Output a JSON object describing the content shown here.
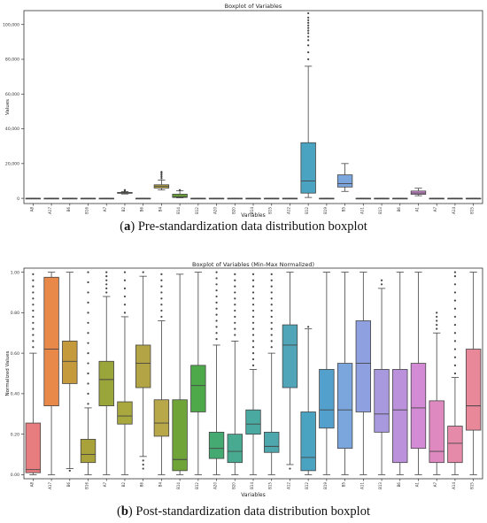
{
  "chart_data": [
    {
      "type": "boxplot",
      "title": "Boxplot of Variables",
      "xlabel": "Variables",
      "ylabel": "Values",
      "ylim": [
        -3000,
        108000
      ],
      "yticks": [
        0,
        20000,
        40000,
        60000,
        80000,
        100000
      ],
      "ytick_labels": [
        "0",
        "20,000",
        "40,000",
        "60,000",
        "80,000",
        "100,000"
      ],
      "grid": false,
      "categories": [
        "A8",
        "A17",
        "B6",
        "B16",
        "A7",
        "B2",
        "B6",
        "B4",
        "B14",
        "B12",
        "A20",
        "B20",
        "B14",
        "B15",
        "A12",
        "B12",
        "B19",
        "B5",
        "A11",
        "B13",
        "B6",
        "A1",
        "A7",
        "A14",
        "B15"
      ],
      "boxes": [
        {
          "min": -50,
          "q1": -30,
          "median": 0,
          "q3": 30,
          "max": 80,
          "color": "#e87d80",
          "fliers": []
        },
        {
          "min": -50,
          "q1": -30,
          "median": 0,
          "q3": 30,
          "max": 80,
          "color": "#e8894a",
          "fliers": []
        },
        {
          "min": -50,
          "q1": -30,
          "median": 0,
          "q3": 30,
          "max": 80,
          "color": "#c49a3c",
          "fliers": []
        },
        {
          "min": -50,
          "q1": -30,
          "median": 0,
          "q3": 30,
          "max": 80,
          "color": "#a9a23a",
          "fliers": []
        },
        {
          "min": -50,
          "q1": -30,
          "median": 0,
          "q3": 30,
          "max": 80,
          "color": "#9aa53a",
          "fliers": []
        },
        {
          "min": 2500,
          "q1": 2900,
          "median": 3100,
          "q3": 3400,
          "max": 3900,
          "color": "#a8a83e",
          "fliers": [
            4200,
            4500,
            4800
          ]
        },
        {
          "min": -50,
          "q1": -30,
          "median": 0,
          "q3": 30,
          "max": 80,
          "color": "#b3a546",
          "fliers": []
        },
        {
          "min": 4800,
          "q1": 5900,
          "median": 6900,
          "q3": 7800,
          "max": 10500,
          "color": "#b8a84a",
          "fliers": [
            11500,
            12500,
            13500,
            14500,
            15200
          ]
        },
        {
          "min": 300,
          "q1": 500,
          "median": 1000,
          "q3": 2400,
          "max": 4300,
          "color": "#6fa538",
          "fliers": [
            4800
          ]
        },
        {
          "min": -50,
          "q1": -30,
          "median": 0,
          "q3": 30,
          "max": 80,
          "color": "#4ea94a",
          "fliers": []
        },
        {
          "min": -50,
          "q1": -30,
          "median": 0,
          "q3": 30,
          "max": 80,
          "color": "#45a972",
          "fliers": []
        },
        {
          "min": -50,
          "q1": -30,
          "median": 0,
          "q3": 30,
          "max": 80,
          "color": "#48aa90",
          "fliers": []
        },
        {
          "min": -50,
          "q1": -30,
          "median": 0,
          "q3": 30,
          "max": 80,
          "color": "#4aa9a0",
          "fliers": []
        },
        {
          "min": -50,
          "q1": -30,
          "median": 0,
          "q3": 30,
          "max": 80,
          "color": "#4ea7ad",
          "fliers": []
        },
        {
          "min": -50,
          "q1": -30,
          "median": 0,
          "q3": 30,
          "max": 80,
          "color": "#51a5b8",
          "fliers": []
        },
        {
          "min": 500,
          "q1": 3000,
          "median": 10000,
          "q3": 32000,
          "max": 76000,
          "color": "#4aa3c0",
          "fliers": [
            80000,
            84000,
            88000,
            91000,
            93000,
            95000,
            96500,
            98000,
            99500,
            101000,
            102500,
            104000,
            106500
          ]
        },
        {
          "min": -50,
          "q1": -30,
          "median": 0,
          "q3": 30,
          "max": 80,
          "color": "#54a0cc",
          "fliers": []
        },
        {
          "min": 4000,
          "q1": 6500,
          "median": 8500,
          "q3": 13500,
          "max": 20000,
          "color": "#7ba6dd",
          "fliers": []
        },
        {
          "min": -50,
          "q1": -30,
          "median": 0,
          "q3": 30,
          "max": 80,
          "color": "#8ea0e0",
          "fliers": []
        },
        {
          "min": -50,
          "q1": -30,
          "median": 0,
          "q3": 30,
          "max": 80,
          "color": "#a899de",
          "fliers": []
        },
        {
          "min": -50,
          "q1": -30,
          "median": 0,
          "q3": 30,
          "max": 80,
          "color": "#bb91dc",
          "fliers": []
        },
        {
          "min": 1500,
          "q1": 2300,
          "median": 3100,
          "q3": 4200,
          "max": 5800,
          "color": "#d38bd6",
          "fliers": []
        },
        {
          "min": -50,
          "q1": -30,
          "median": 0,
          "q3": 30,
          "max": 80,
          "color": "#de8ac0",
          "fliers": []
        },
        {
          "min": -50,
          "q1": -30,
          "median": 0,
          "q3": 30,
          "max": 80,
          "color": "#e58aa8",
          "fliers": []
        },
        {
          "min": -50,
          "q1": -30,
          "median": 0,
          "q3": 30,
          "max": 80,
          "color": "#e88898",
          "fliers": []
        }
      ]
    },
    {
      "type": "boxplot",
      "title": "Boxplot of Variables (Min-Max Normalized)",
      "xlabel": "Variables",
      "ylabel": "Normalized Values",
      "ylim": [
        -0.02,
        1.02
      ],
      "yticks": [
        0,
        0.2,
        0.4,
        0.6,
        0.8,
        1.0
      ],
      "ytick_labels": [
        "0.00",
        "0.20",
        "0.40",
        "0.60",
        "0.80",
        "1.00"
      ],
      "grid": false,
      "categories": [
        "A8",
        "A17",
        "B6",
        "B16",
        "A7",
        "B2",
        "B6",
        "B4",
        "B14",
        "B12",
        "A20",
        "B20",
        "B14",
        "B15",
        "A12",
        "B12",
        "B19",
        "B5",
        "A11",
        "B13",
        "B6",
        "A1",
        "A7",
        "A14",
        "B15"
      ],
      "boxes": [
        {
          "min": 0.0,
          "q1": 0.01,
          "median": 0.025,
          "q3": 0.255,
          "max": 0.6,
          "color": "#e87d80",
          "fliers": [
            0.63,
            0.66,
            0.69,
            0.72,
            0.75,
            0.78,
            0.81,
            0.84,
            0.87,
            0.9,
            0.93,
            0.96,
            0.99
          ]
        },
        {
          "min": 0.0,
          "q1": 0.34,
          "median": 0.62,
          "q3": 0.975,
          "max": 1.0,
          "color": "#e8894a",
          "fliers": []
        },
        {
          "min": 0.03,
          "q1": 0.45,
          "median": 0.56,
          "q3": 0.66,
          "max": 1.0,
          "color": "#c49a3c",
          "fliers": [
            0.02
          ]
        },
        {
          "min": 0.0,
          "q1": 0.06,
          "median": 0.1,
          "q3": 0.175,
          "max": 0.33,
          "color": "#a9a23a",
          "fliers": [
            0.35,
            0.4,
            0.45,
            0.5,
            0.55,
            0.6,
            0.65,
            0.7,
            0.75,
            0.8,
            0.85,
            0.9,
            0.95,
            1.0
          ]
        },
        {
          "min": 0.0,
          "q1": 0.34,
          "median": 0.47,
          "q3": 0.56,
          "max": 0.88,
          "color": "#9aa53a",
          "fliers": [
            0.9,
            0.92,
            0.94,
            0.96,
            0.98,
            1.0
          ]
        },
        {
          "min": 0.0,
          "q1": 0.25,
          "median": 0.29,
          "q3": 0.36,
          "max": 0.78,
          "color": "#a8a83e",
          "fliers": [
            0.8,
            0.84,
            0.88,
            0.92,
            0.96,
            1.0
          ]
        },
        {
          "min": 0.09,
          "q1": 0.43,
          "median": 0.55,
          "q3": 0.64,
          "max": 0.98,
          "color": "#b3a546",
          "fliers": [
            0.03,
            0.05,
            0.07,
            1.0
          ]
        },
        {
          "min": 0.0,
          "q1": 0.19,
          "median": 0.255,
          "q3": 0.37,
          "max": 0.76,
          "color": "#b8a84a",
          "fliers": [
            0.78,
            0.81,
            0.84,
            0.87,
            0.9,
            0.93,
            0.96,
            0.99
          ]
        },
        {
          "min": 0.0,
          "q1": 0.02,
          "median": 0.075,
          "q3": 0.37,
          "max": 0.99,
          "color": "#6fa538",
          "fliers": []
        },
        {
          "min": 0.0,
          "q1": 0.31,
          "median": 0.44,
          "q3": 0.54,
          "max": 1.0,
          "color": "#4ea94a",
          "fliers": []
        },
        {
          "min": 0.0,
          "q1": 0.08,
          "median": 0.13,
          "q3": 0.21,
          "max": 0.64,
          "color": "#45a972",
          "fliers": [
            0.67,
            0.7,
            0.73,
            0.76,
            0.79,
            0.82,
            0.85,
            0.88,
            0.91,
            0.94,
            0.97,
            1.0
          ]
        },
        {
          "min": 0.0,
          "q1": 0.06,
          "median": 0.115,
          "q3": 0.2,
          "max": 0.66,
          "color": "#48aa90",
          "fliers": [
            0.69,
            0.72,
            0.75,
            0.78,
            0.81,
            0.84,
            0.87,
            0.9,
            0.93,
            0.96,
            0.99
          ]
        },
        {
          "min": 0.0,
          "q1": 0.2,
          "median": 0.25,
          "q3": 0.32,
          "max": 0.52,
          "color": "#4aa9a0",
          "fliers": [
            0.54,
            0.57,
            0.6,
            0.63,
            0.66,
            0.69,
            0.72,
            0.75,
            0.78,
            0.81,
            0.84,
            0.87,
            0.9,
            0.93,
            0.96,
            0.99
          ]
        },
        {
          "min": 0.0,
          "q1": 0.11,
          "median": 0.14,
          "q3": 0.21,
          "max": 0.6,
          "color": "#4ea7ad",
          "fliers": [
            0.63,
            0.66,
            0.69,
            0.72,
            0.75,
            0.78,
            0.81,
            0.84,
            0.87,
            0.9,
            0.93,
            0.96,
            0.99
          ]
        },
        {
          "min": 0.05,
          "q1": 0.43,
          "median": 0.64,
          "q3": 0.74,
          "max": 1.0,
          "color": "#51a5b8",
          "fliers": [
            0.03
          ]
        },
        {
          "min": 0.0,
          "q1": 0.02,
          "median": 0.085,
          "q3": 0.31,
          "max": 0.72,
          "color": "#4aa3c0",
          "fliers": [
            0.73
          ]
        },
        {
          "min": 0.0,
          "q1": 0.23,
          "median": 0.32,
          "q3": 0.52,
          "max": 1.0,
          "color": "#54a0cc",
          "fliers": []
        },
        {
          "min": 0.0,
          "q1": 0.13,
          "median": 0.32,
          "q3": 0.55,
          "max": 1.0,
          "color": "#7ba6dd",
          "fliers": []
        },
        {
          "min": 0.0,
          "q1": 0.31,
          "median": 0.55,
          "q3": 0.76,
          "max": 1.0,
          "color": "#8ea0e0",
          "fliers": []
        },
        {
          "min": 0.0,
          "q1": 0.21,
          "median": 0.3,
          "q3": 0.52,
          "max": 0.92,
          "color": "#a899de",
          "fliers": [
            0.94,
            0.96
          ]
        },
        {
          "min": 0.0,
          "q1": 0.06,
          "median": 0.32,
          "q3": 0.52,
          "max": 1.0,
          "color": "#bb91dc",
          "fliers": []
        },
        {
          "min": 0.0,
          "q1": 0.13,
          "median": 0.33,
          "q3": 0.55,
          "max": 1.0,
          "color": "#d38bd6",
          "fliers": []
        },
        {
          "min": 0.0,
          "q1": 0.06,
          "median": 0.115,
          "q3": 0.365,
          "max": 0.7,
          "color": "#de8ac0",
          "fliers": [
            0.72,
            0.74,
            0.76,
            0.78,
            0.8
          ]
        },
        {
          "min": 0.0,
          "q1": 0.06,
          "median": 0.155,
          "q3": 0.24,
          "max": 0.48,
          "color": "#e58aa8",
          "fliers": [
            0.5,
            0.54,
            0.58,
            0.62,
            0.66,
            0.7,
            0.74,
            0.78,
            0.82,
            0.86,
            0.9,
            0.94,
            0.98,
            1.0
          ]
        },
        {
          "min": 0.0,
          "q1": 0.22,
          "median": 0.34,
          "q3": 0.62,
          "max": 1.0,
          "color": "#e88898",
          "fliers": []
        }
      ]
    }
  ],
  "captions": [
    {
      "label": "a",
      "text": " Pre-standardization data distribution boxplot"
    },
    {
      "label": "b",
      "text": " Post-standardization data distribution boxplot"
    }
  ]
}
